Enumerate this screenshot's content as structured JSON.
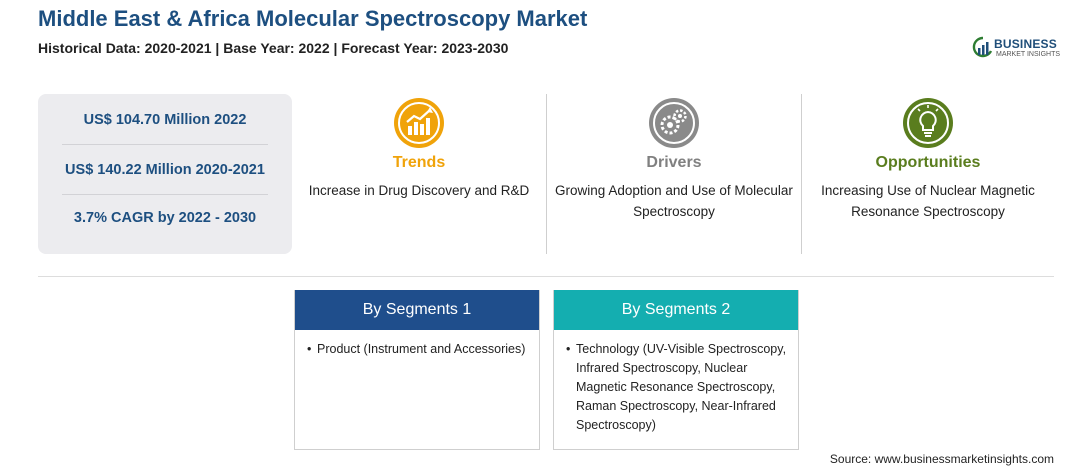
{
  "header": {
    "title": "Middle East & Africa Molecular Spectroscopy Market",
    "subtitle": "Historical Data: 2020-2021 | Base Year: 2022 | Forecast Year: 2023-2030"
  },
  "logo": {
    "line1": "BUSINESS",
    "line2": "MARKET INSIGHTS"
  },
  "stats": [
    "US$ 104.70 Million 2022",
    "US$ 140.22 Million 2020-2021",
    "3.7% CAGR by 2022 - 2030"
  ],
  "features": [
    {
      "title": "Trends",
      "desc": "Increase in Drug Discovery and R&D",
      "color": "#f0a30a",
      "icon": "trend-chart-icon"
    },
    {
      "title": "Drivers",
      "desc": "Growing Adoption and Use of Molecular Spectroscopy",
      "color": "#808080",
      "icon": "gears-icon"
    },
    {
      "title": "Opportunities",
      "desc": "Increasing Use of Nuclear Magnetic Resonance Spectroscopy",
      "color": "#5a7d1e",
      "icon": "lightbulb-icon"
    }
  ],
  "segments": [
    {
      "title": "By Segments 1",
      "color": "#1f4e8c",
      "bullet": "•",
      "text": "Product (Instrument and Accessories)"
    },
    {
      "title": "By Segments 2",
      "color": "#14aeb0",
      "bullet": "•",
      "text": "Technology (UV-Visible Spectroscopy, Infrared Spectroscopy, Nuclear Magnetic Resonance Spectroscopy, Raman Spectroscopy, Near-Infrared Spectroscopy)"
    }
  ],
  "source": "Source: www.businessmarketinsights.com"
}
